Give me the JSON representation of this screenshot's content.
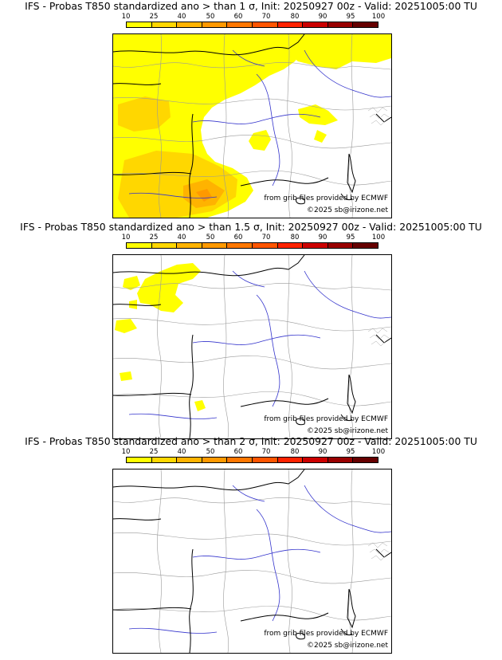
{
  "colorbar": {
    "ticks": [
      "10",
      "25",
      "40",
      "50",
      "60",
      "70",
      "80",
      "90",
      "95",
      "100"
    ],
    "colors": [
      "#ffff00",
      "#ffd700",
      "#ffb300",
      "#ff9900",
      "#ff7700",
      "#ff5500",
      "#ff2200",
      "#cc0000",
      "#990000",
      "#660000"
    ]
  },
  "credits": {
    "source": "from grib files provided by ECMWF",
    "copyright": "©2025 sb@irizone.net"
  },
  "panels": [
    {
      "title": "IFS - Probas T850  standardized ano > than 1 σ, Init: 20250927 00z - Valid: 20251005:00 TU",
      "coverage": "large"
    },
    {
      "title": "IFS - Probas T850  standardized ano > than 1.5 σ, Init: 20250927 00z - Valid: 20251005:00 TU",
      "coverage": "small"
    },
    {
      "title": "IFS - Probas T850  standardized ano > than 2 σ, Init: 20250927 00z - Valid: 20251005:00 TU",
      "coverage": "none"
    }
  ]
}
